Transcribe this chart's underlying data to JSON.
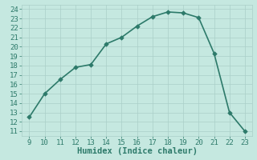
{
  "x": [
    9,
    10,
    11,
    12,
    13,
    14,
    15,
    16,
    17,
    18,
    19,
    20,
    21,
    22,
    23
  ],
  "y": [
    12.5,
    15.0,
    16.5,
    17.8,
    18.1,
    20.3,
    21.0,
    22.2,
    23.2,
    23.7,
    23.6,
    23.1,
    19.3,
    13.0,
    11.0
  ],
  "xlabel": "Humidex (Indice chaleur)",
  "xlim": [
    8.5,
    23.5
  ],
  "ylim": [
    10.5,
    24.5
  ],
  "xticks": [
    9,
    10,
    11,
    12,
    13,
    14,
    15,
    16,
    17,
    18,
    19,
    20,
    21,
    22,
    23
  ],
  "yticks": [
    11,
    12,
    13,
    14,
    15,
    16,
    17,
    18,
    19,
    20,
    21,
    22,
    23,
    24
  ],
  "line_color": "#2d7a6a",
  "bg_color": "#c5e8e0",
  "grid_color": "#aacfc8",
  "marker": "D",
  "marker_size": 2.8,
  "line_width": 1.2,
  "tick_color": "#2d7a6a",
  "xlabel_color": "#2d7a6a",
  "tick_fontsize": 6.5,
  "xlabel_fontsize": 7.5
}
